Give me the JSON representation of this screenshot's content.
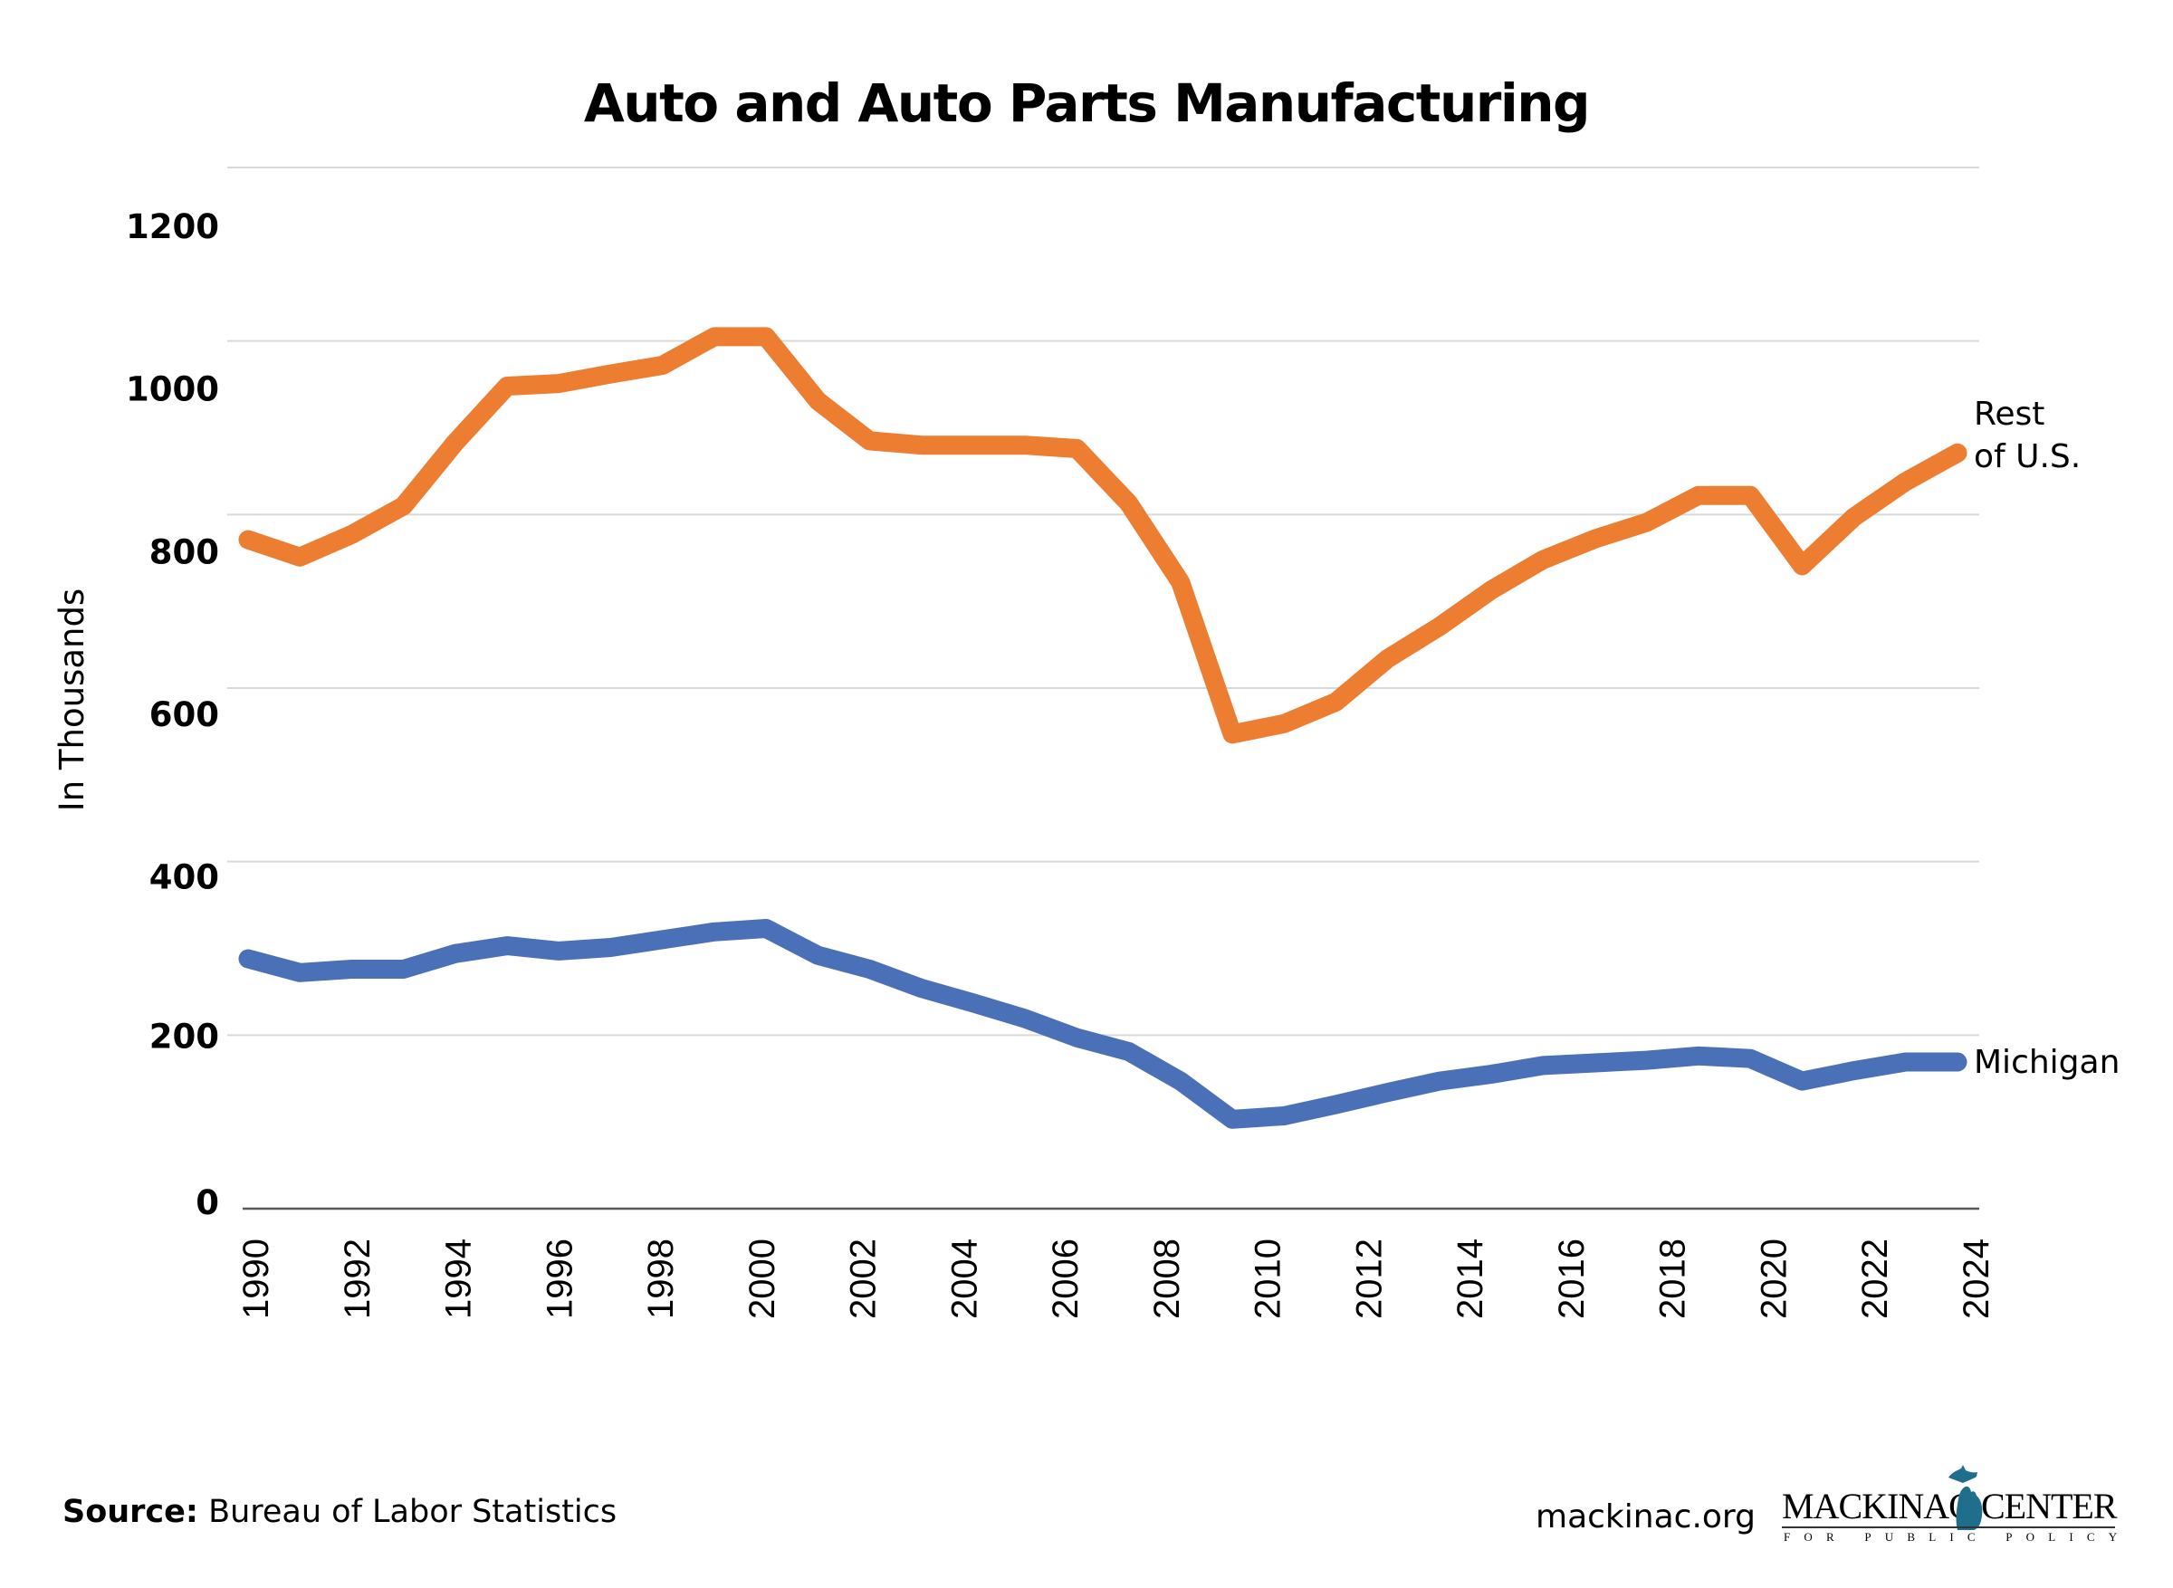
{
  "title": "Auto and Auto Parts Manufacturing",
  "footer": {
    "source_label": "Source:",
    "source_text": "Bureau of Labor Statistics",
    "url": "mackinac.org",
    "logo": {
      "word1": "MACKINAC",
      "word2": "CENTER",
      "tagline": "FOR PUBLIC POLICY",
      "mitten_color": "#1E6E8C"
    }
  },
  "chart_data": {
    "type": "line",
    "title": "Auto and Auto Parts Manufacturing",
    "xlabel": "",
    "ylabel": "In Thousands",
    "ylim": [
      0,
      1200
    ],
    "yticks": [
      0,
      200,
      400,
      600,
      800,
      1000,
      1200
    ],
    "ytick_labels": [
      "0",
      "200",
      "400",
      "600",
      "800",
      "1000",
      "1200"
    ],
    "xtick_labels": [
      "1990",
      "1992",
      "1994",
      "1996",
      "1998",
      "2000",
      "2002",
      "2004",
      "2006",
      "2008",
      "2010",
      "2012",
      "2014",
      "2016",
      "2018",
      "2020",
      "2022",
      "2024"
    ],
    "x": [
      1990,
      1991,
      1992,
      1993,
      1994,
      1995,
      1996,
      1997,
      1998,
      1999,
      2000,
      2001,
      2002,
      2003,
      2004,
      2005,
      2006,
      2007,
      2008,
      2009,
      2010,
      2011,
      2012,
      2013,
      2014,
      2015,
      2016,
      2017,
      2018,
      2019,
      2020,
      2021,
      2022,
      2023
    ],
    "grid": true,
    "legend": "inline labels at line ends (right)",
    "series": [
      {
        "name": "Rest of U.S.",
        "label_lines": [
          "Rest",
          "of U.S."
        ],
        "color": "#ED7D31",
        "values": [
          771,
          751,
          777,
          810,
          883,
          948,
          951,
          962,
          972,
          1005,
          1005,
          931,
          885,
          880,
          880,
          880,
          876,
          813,
          722,
          547,
          559,
          584,
          634,
          671,
          713,
          748,
          772,
          791,
          822,
          822,
          741,
          797,
          838,
          871
        ]
      },
      {
        "name": "Michigan",
        "label_lines": [
          "Michigan"
        ],
        "color": "#4A70B8",
        "values": [
          288,
          272,
          276,
          276,
          294,
          303,
          297,
          301,
          310,
          319,
          323,
          292,
          276,
          254,
          237,
          219,
          197,
          181,
          147,
          103,
          107,
          120,
          134,
          147,
          155,
          165,
          168,
          171,
          176,
          173,
          147,
          159,
          169,
          169
        ]
      }
    ]
  }
}
